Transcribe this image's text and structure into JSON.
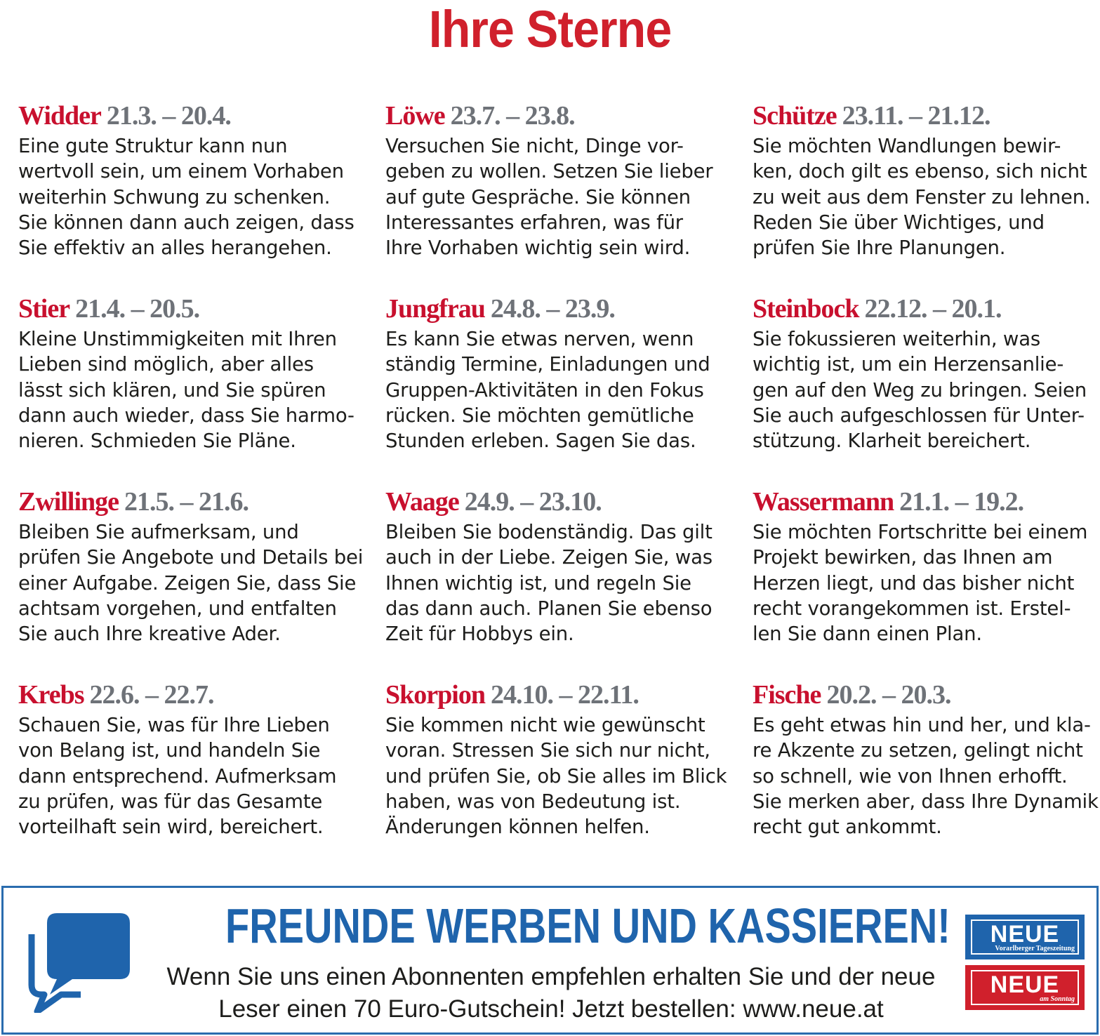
{
  "page_title": "Ihre Sterne",
  "signs": [
    {
      "name": "Widder",
      "dates": "21.3. – 20.4.",
      "lines": [
        "Eine gute Struktur kann nun",
        "wertvoll sein, um einem Vorhaben",
        "weiterhin Schwung zu schenken.",
        "Sie können dann auch zeigen, dass",
        "Sie effektiv an alles herangehen."
      ]
    },
    {
      "name": "Löwe",
      "dates": "23.7. – 23.8.",
      "lines": [
        "Versuchen Sie nicht, Dinge vor-",
        "geben zu wollen. Setzen Sie lieber",
        "auf gute Gespräche. Sie können",
        "Interessantes erfahren, was für",
        "Ihre Vorhaben wichtig sein wird."
      ]
    },
    {
      "name": "Schütze",
      "dates": "23.11. – 21.12.",
      "lines": [
        "Sie möchten Wandlungen bewir-",
        "ken, doch gilt es ebenso, sich nicht",
        "zu weit aus dem Fenster zu lehnen.",
        "Reden Sie über Wichtiges, und",
        "prüfen Sie Ihre Planungen."
      ]
    },
    {
      "name": "Stier",
      "dates": "21.4. – 20.5.",
      "lines": [
        "Kleine Unstimmigkeiten mit Ihren",
        "Lieben sind möglich, aber alles",
        "lässt sich klären, und Sie spüren",
        "dann auch wieder, dass Sie harmo-",
        "nieren. Schmieden Sie Pläne."
      ]
    },
    {
      "name": "Jungfrau",
      "dates": "24.8. – 23.9.",
      "lines": [
        "Es kann Sie etwas nerven, wenn",
        "ständig Termine, Einladungen und",
        "Gruppen-Aktivitäten in den Fokus",
        "rücken. Sie möchten gemütliche",
        "Stunden erleben. Sagen Sie das."
      ]
    },
    {
      "name": "Steinbock",
      "dates": "22.12. – 20.1.",
      "lines": [
        "Sie fokussieren weiterhin, was",
        "wichtig ist, um ein Herzensanlie-",
        "gen auf den Weg zu bringen. Seien",
        "Sie auch aufgeschlossen für Unter-",
        "stützung. Klarheit bereichert."
      ]
    },
    {
      "name": "Zwillinge",
      "dates": "21.5. – 21.6.",
      "lines": [
        "Bleiben Sie aufmerksam, und",
        "prüfen Sie Angebote und Details bei",
        "einer Aufgabe. Zeigen Sie, dass Sie",
        "achtsam vorgehen, und entfalten",
        "Sie auch Ihre kreative Ader."
      ]
    },
    {
      "name": "Waage",
      "dates": "24.9. – 23.10.",
      "lines": [
        "Bleiben Sie bodenständig. Das gilt",
        "auch in der Liebe. Zeigen Sie, was",
        "Ihnen wichtig ist, und regeln Sie",
        "das dann auch. Planen Sie ebenso",
        "Zeit für Hobbys ein."
      ]
    },
    {
      "name": "Wassermann",
      "dates": "21.1. – 19.2.",
      "lines": [
        "Sie möchten Fortschritte bei einem",
        "Projekt bewirken, das Ihnen am",
        "Herzen liegt, und das bisher nicht",
        "recht vorangekommen ist. Erstel-",
        "len Sie dann einen Plan."
      ]
    },
    {
      "name": "Krebs",
      "dates": "22.6. – 22.7.",
      "lines": [
        "Schauen Sie, was für Ihre Lieben",
        "von Belang ist, und handeln Sie",
        "dann entsprechend. Aufmerksam",
        "zu prüfen, was für das Gesamte",
        "vorteilhaft sein wird, bereichert."
      ]
    },
    {
      "name": "Skorpion",
      "dates": "24.10. – 22.11.",
      "lines": [
        "Sie kommen nicht wie gewünscht",
        "voran. Stressen Sie sich nur nicht,",
        "und prüfen Sie, ob Sie alles im Blick",
        "haben, was von Bedeutung ist.",
        "Änderungen können helfen."
      ]
    },
    {
      "name": "Fische",
      "dates": "20.2. – 20.3.",
      "lines": [
        "Es geht etwas hin und her, und kla-",
        "re Akzente zu setzen, gelingt nicht",
        "so schnell, wie von Ihnen erhofft.",
        "Sie merken aber, dass Ihre Dynamik",
        "recht gut ankommt."
      ]
    }
  ],
  "promo": {
    "icon": "speech-bubbles-icon",
    "headline": "FREUNDE WERBEN UND KASSIEREN!",
    "line1": "Wenn Sie uns einen Abonnenten empfehlen erhalten Sie und der neue",
    "line2": "Leser einen 70 Euro-Gutschein! Jetzt bestellen: www.neue.at",
    "logo_top": {
      "word": "NEUE",
      "subtitle": "Vorarlberger Tageszeitung"
    },
    "logo_bottom": {
      "word": "NEUE",
      "subtitle_small": "am",
      "subtitle": "Sonntag"
    }
  },
  "colors": {
    "sign_name": "#c8102e",
    "sign_dates": "#6e7278",
    "title": "#d0202c",
    "promo_blue": "#1f64ac",
    "logo_red": "#d0202c"
  }
}
